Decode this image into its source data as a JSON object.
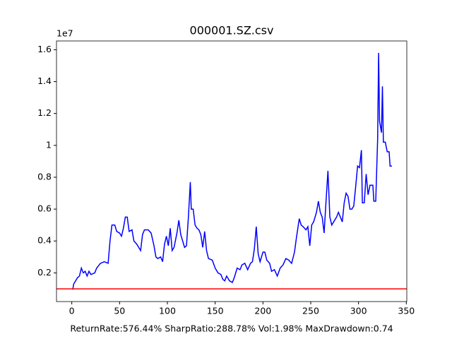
{
  "chart_data": {
    "type": "line",
    "title": "000001.SZ.csv",
    "y_offset_label": "1e7",
    "xlabel": "ReturnRate:576.44% SharpRatio:288.78% Vol:1.98% MaxDrawdown:0.74",
    "x": [
      1,
      2,
      4,
      6,
      8,
      10,
      12,
      14,
      16,
      18,
      20,
      24,
      26,
      30,
      34,
      38,
      40,
      42,
      45,
      47,
      50,
      52,
      54,
      56,
      58,
      60,
      63,
      65,
      68,
      70,
      72,
      74,
      76,
      80,
      83,
      86,
      88,
      90,
      93,
      95,
      97,
      99,
      101,
      103,
      105,
      107,
      110,
      112,
      114,
      116,
      118,
      120,
      122,
      124,
      125,
      127,
      129,
      131,
      133,
      135,
      137,
      139,
      141,
      143,
      147,
      150,
      153,
      156,
      158,
      160,
      162,
      165,
      168,
      170,
      173,
      176,
      178,
      181,
      184,
      187,
      189,
      191,
      193,
      195,
      197,
      200,
      202,
      204,
      207,
      209,
      212,
      215,
      218,
      221,
      224,
      227,
      230,
      233,
      235,
      238,
      240,
      242,
      245,
      247,
      249,
      251,
      253,
      256,
      258,
      260,
      262,
      264,
      266,
      268,
      270,
      272,
      275,
      277,
      279,
      281,
      283,
      285,
      287,
      289,
      291,
      293,
      295,
      297,
      299,
      301,
      303,
      304,
      306,
      308,
      310,
      312,
      315,
      316,
      318,
      320,
      321,
      322,
      324,
      325,
      326,
      328,
      330,
      332,
      333,
      335
    ],
    "series": [
      {
        "color": "#0000ff",
        "values": [
          0.095,
          0.13,
          0.15,
          0.17,
          0.18,
          0.23,
          0.2,
          0.21,
          0.18,
          0.21,
          0.19,
          0.2,
          0.23,
          0.26,
          0.27,
          0.26,
          0.4,
          0.5,
          0.5,
          0.46,
          0.45,
          0.43,
          0.48,
          0.55,
          0.55,
          0.46,
          0.47,
          0.4,
          0.38,
          0.36,
          0.34,
          0.44,
          0.47,
          0.47,
          0.45,
          0.37,
          0.3,
          0.29,
          0.3,
          0.27,
          0.38,
          0.43,
          0.37,
          0.48,
          0.34,
          0.36,
          0.45,
          0.53,
          0.44,
          0.4,
          0.36,
          0.37,
          0.55,
          0.77,
          0.6,
          0.6,
          0.5,
          0.48,
          0.47,
          0.44,
          0.36,
          0.46,
          0.34,
          0.29,
          0.28,
          0.23,
          0.2,
          0.19,
          0.16,
          0.15,
          0.18,
          0.15,
          0.14,
          0.17,
          0.23,
          0.22,
          0.25,
          0.26,
          0.22,
          0.26,
          0.27,
          0.35,
          0.49,
          0.32,
          0.27,
          0.33,
          0.33,
          0.28,
          0.26,
          0.21,
          0.22,
          0.18,
          0.23,
          0.25,
          0.29,
          0.28,
          0.26,
          0.33,
          0.42,
          0.54,
          0.5,
          0.49,
          0.47,
          0.49,
          0.37,
          0.5,
          0.52,
          0.58,
          0.65,
          0.58,
          0.55,
          0.45,
          0.65,
          0.84,
          0.55,
          0.5,
          0.53,
          0.55,
          0.58,
          0.55,
          0.52,
          0.64,
          0.7,
          0.68,
          0.6,
          0.6,
          0.62,
          0.74,
          0.87,
          0.86,
          0.97,
          0.64,
          0.64,
          0.82,
          0.69,
          0.75,
          0.75,
          0.65,
          0.65,
          1.04,
          1.58,
          1.15,
          1.08,
          1.37,
          1.02,
          1.02,
          0.96,
          0.96,
          0.87,
          0.87
        ]
      }
    ],
    "hline": {
      "value": 0.1,
      "color": "#ff0000"
    },
    "xlim": [
      -16,
      350.5
    ],
    "xticks": [
      0,
      50,
      100,
      150,
      200,
      250,
      300,
      350
    ],
    "ylim": [
      0.02,
      1.655
    ],
    "yticks": [
      0.2,
      0.4,
      0.6,
      0.8,
      1.0,
      1.2,
      1.4,
      1.6
    ]
  }
}
